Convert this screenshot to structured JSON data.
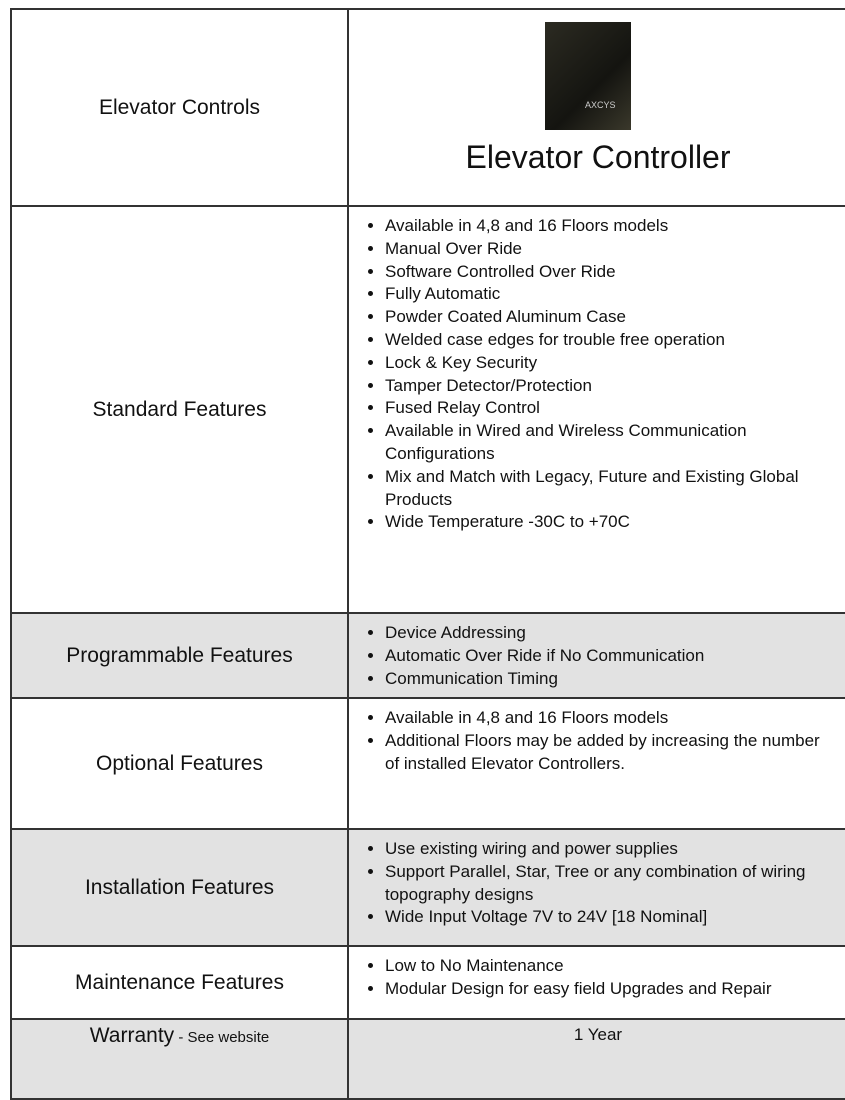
{
  "header": {
    "title": "Elevator Controls",
    "product": "Elevator Controller",
    "image_text": "AXCYS"
  },
  "rows": [
    {
      "label": "Standard Features",
      "items": [
        "Available in 4,8 and 16 Floors models",
        "Manual Over Ride",
        "Software Controlled Over Ride",
        "Fully Automatic",
        "Powder Coated Aluminum Case",
        "Welded case edges for trouble free operation",
        "Lock & Key Security",
        "Tamper Detector/Protection",
        "Fused Relay Control",
        "Available in Wired and Wireless Communication Configurations",
        "Mix and Match with Legacy, Future and Existing Global Products",
        "Wide Temperature -30C to +70C"
      ]
    },
    {
      "label": "Programmable Features",
      "items": [
        "Device Addressing",
        "Automatic Over Ride if No Communication",
        "Communication Timing"
      ]
    },
    {
      "label": "Optional Features",
      "items": [
        "Available in 4,8 and 16 Floors models",
        "Additional Floors may be added by increasing the number of installed Elevator Controllers."
      ]
    },
    {
      "label": "Installation Features",
      "items": [
        "Use existing wiring and power supplies",
        "Support Parallel, Star, Tree or any combination of wiring topography designs",
        "Wide Input Voltage 7V to 24V [18 Nominal]"
      ]
    },
    {
      "label": "Maintenance Features",
      "items": [
        "Low to No Maintenance",
        "Modular Design for easy field Upgrades and Repair"
      ]
    }
  ],
  "warranty": {
    "label": "Warranty",
    "note": " - See website",
    "value": "1 Year"
  }
}
